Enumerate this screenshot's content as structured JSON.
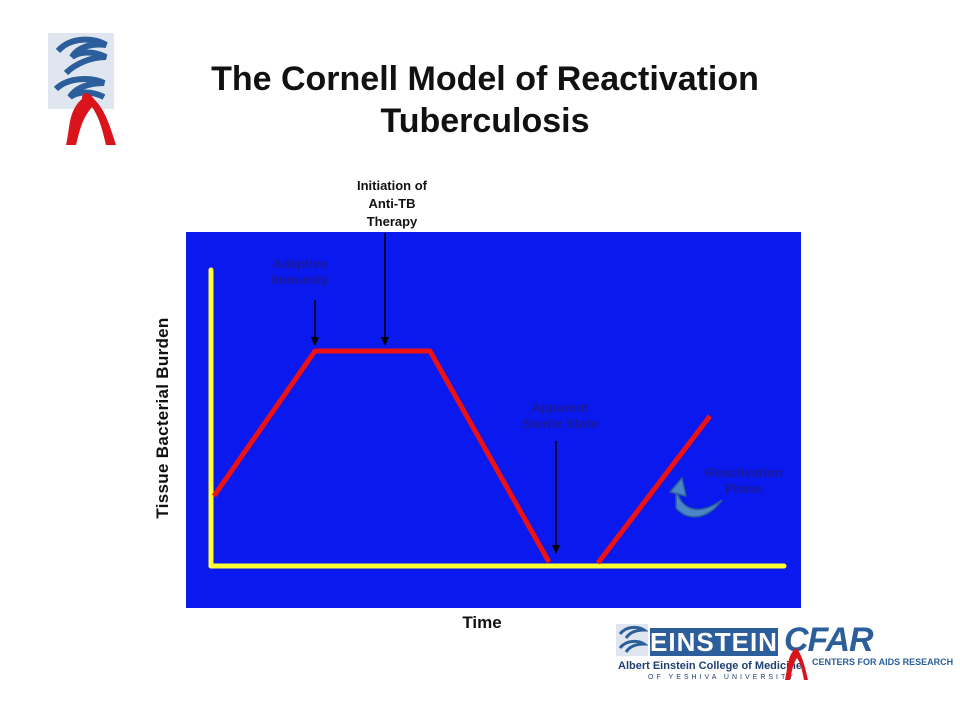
{
  "title": "The Cornell Model of Reactivation Tuberculosis",
  "axes": {
    "ylabel": "Tissue Bacterial Burden",
    "xlabel": "Time"
  },
  "annotations": {
    "initiation_therapy": [
      "Initiation of",
      "Anti-TB",
      "Therapy"
    ],
    "adaptive_immunity": [
      "Adaptive",
      "Immunity"
    ],
    "sterile_state": [
      "Apparent",
      "Sterile State"
    ],
    "reactivation": [
      "Reactivation",
      "Phase"
    ]
  },
  "logos": {
    "einstein": "EINSTEIN",
    "college": "Albert Einstein College of Medicine",
    "university": "OF YESHIVA UNIVERSITY",
    "cfar": "CFAR",
    "cfar_full": "CENTERS FOR AIDS RESEARCH"
  },
  "colors": {
    "panel": "#0a1aee",
    "axis": "#ffff33",
    "curve": "#ee1111",
    "ribbon": "#d9141b",
    "brand_blue": "#2b5e9a"
  }
}
